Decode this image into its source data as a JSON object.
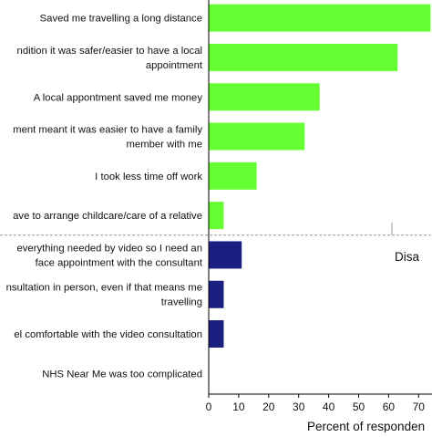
{
  "chart_data": {
    "type": "bar",
    "orientation": "horizontal",
    "categories": [
      {
        "lines": [
          "Saved me travelling a long distance"
        ],
        "value": 74,
        "group": "advantages"
      },
      {
        "lines": [
          "ndition it was safer/easier to have a local",
          "appointment"
        ],
        "value": 63,
        "group": "advantages"
      },
      {
        "lines": [
          "A local appontment saved me money"
        ],
        "value": 37,
        "group": "advantages"
      },
      {
        "lines": [
          "ment meant it was easier to have a family",
          "member with me"
        ],
        "value": 32,
        "group": "advantages"
      },
      {
        "lines": [
          "I took less time off work"
        ],
        "value": 16,
        "group": "advantages"
      },
      {
        "lines": [
          "ave to arrange childcare/care of a relative"
        ],
        "value": 5,
        "group": "advantages"
      },
      {
        "lines": [
          "everything needed by video so I need an",
          "face appointment with the consultant"
        ],
        "value": 11,
        "group": "disadvantages"
      },
      {
        "lines": [
          "nsultation in person, even if that means me",
          "travelling"
        ],
        "value": 5,
        "group": "disadvantages"
      },
      {
        "lines": [
          "el comfortable with the video consultation"
        ],
        "value": 5,
        "group": "disadvantages"
      },
      {
        "lines": [
          "NHS Near Me was too complicated"
        ],
        "value": 0,
        "group": "disadvantages"
      }
    ],
    "xlabel": "Percent of responden",
    "xlim": [
      0,
      75
    ],
    "xticks": [
      0,
      10,
      20,
      30,
      40,
      50,
      60,
      70
    ],
    "panel_label": "Disa",
    "colors": {
      "advantages": "#66ff33",
      "disadvantages": "#1a1f80",
      "divider": "#9a9a9a",
      "axis": "#000000"
    }
  }
}
